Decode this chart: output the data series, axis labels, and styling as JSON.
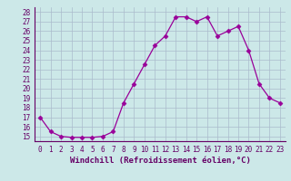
{
  "x": [
    0,
    1,
    2,
    3,
    4,
    5,
    6,
    7,
    8,
    9,
    10,
    11,
    12,
    13,
    14,
    15,
    16,
    17,
    18,
    19,
    20,
    21,
    22,
    23
  ],
  "y": [
    17,
    15.5,
    15,
    14.9,
    14.9,
    14.9,
    15,
    15.5,
    18.5,
    20.5,
    22.5,
    24.5,
    25.5,
    27.5,
    27.5,
    27.0,
    27.5,
    25.5,
    26.0,
    26.5,
    24.0,
    20.5,
    19.0,
    18.5
  ],
  "ylim_min": 14.5,
  "ylim_max": 28.5,
  "yticks": [
    15,
    16,
    17,
    18,
    19,
    20,
    21,
    22,
    23,
    24,
    25,
    26,
    27,
    28
  ],
  "xtick_labels": [
    "0",
    "1",
    "2",
    "3",
    "4",
    "5",
    "6",
    "7",
    "8",
    "9",
    "10",
    "11",
    "12",
    "13",
    "14",
    "15",
    "16",
    "17",
    "18",
    "19",
    "20",
    "21",
    "22",
    "23"
  ],
  "xlabel": "Windchill (Refroidissement éolien,°C)",
  "line_color": "#990099",
  "marker": "D",
  "marker_size": 2.5,
  "bg_color": "#cce8e8",
  "plot_bg_color": "#cce8e8",
  "grid_color": "#aabbcc",
  "text_color": "#660066",
  "tick_fontsize": 5.5,
  "xlabel_fontsize": 6.5
}
